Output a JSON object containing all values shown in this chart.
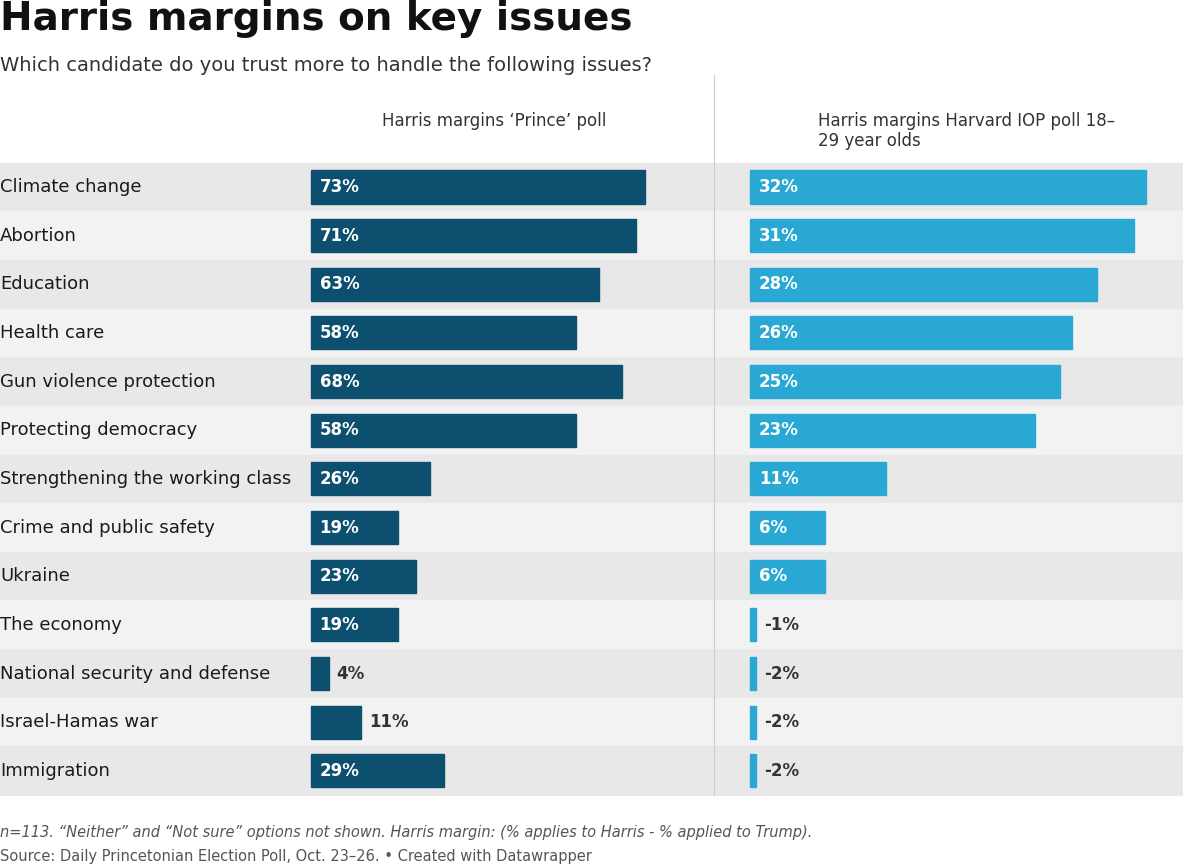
{
  "title": "Harris margins on key issues",
  "subtitle": "Which candidate do you trust more to handle the following issues?",
  "col1_header": "Harris margins ‘Prince’ poll",
  "col2_header": "Harris margins Harvard IOP poll 18–\n29 year olds",
  "footnote": "n=113. “Neither” and “Not sure” options not shown. Harris margin: (% applies to Harris - % applied to Trump).",
  "source": "Source: Daily Princetonian Election Poll, Oct. 23–26. • Created with Datawrapper",
  "issues": [
    "Climate change",
    "Abortion",
    "Education",
    "Health care",
    "Gun violence protection",
    "Protecting democracy",
    "Strengthening the working class",
    "Crime and public safety",
    "Ukraine",
    "The economy",
    "National security and defense",
    "Israel-Hamas war",
    "Immigration"
  ],
  "prince_values": [
    73,
    71,
    63,
    58,
    68,
    58,
    26,
    19,
    23,
    19,
    4,
    11,
    29
  ],
  "harvard_values": [
    32,
    31,
    28,
    26,
    25,
    23,
    11,
    6,
    6,
    -1,
    -2,
    -2,
    -2
  ],
  "prince_color": "#0d4f6e",
  "harvard_color_large": "#29a8d4",
  "harvard_color_small": "#29a8d4",
  "white": "#ffffff",
  "row_bg_dark": "#e8e8e8",
  "row_bg_light": "#f2f2f2",
  "title_fontsize": 28,
  "subtitle_fontsize": 14,
  "label_fontsize": 13,
  "bar_label_fontsize": 12,
  "header_fontsize": 12,
  "footnote_fontsize": 10.5,
  "prince_max": 80,
  "harvard_max": 35
}
